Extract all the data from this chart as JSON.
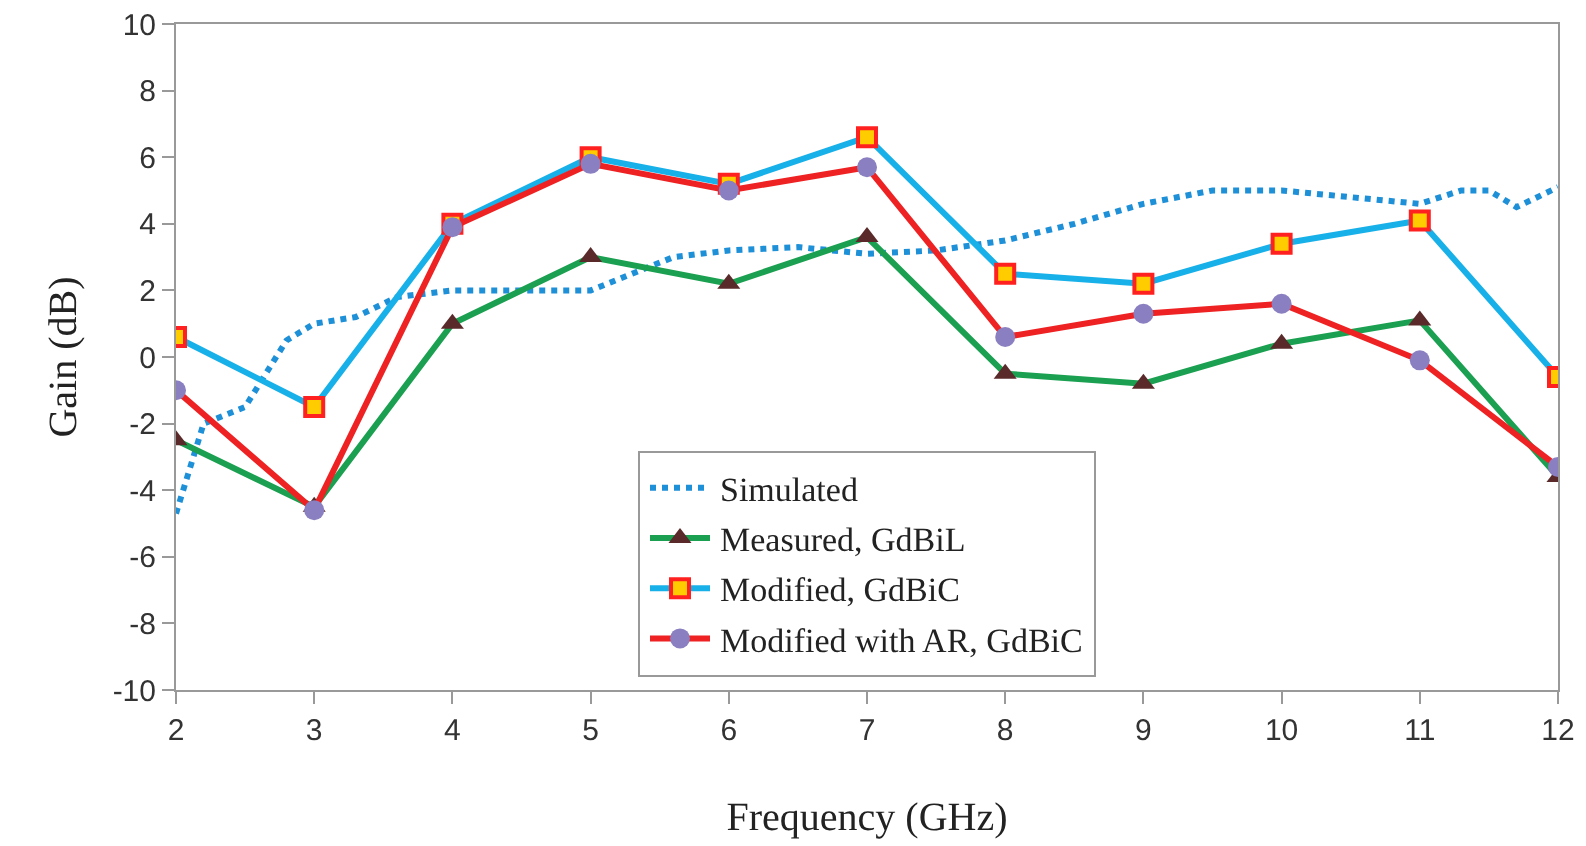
{
  "chart_data": {
    "type": "line",
    "xlabel": "Frequency (GHz)",
    "ylabel": "Gain (dB)",
    "xlim": [
      2,
      12
    ],
    "xticks": [
      2,
      3,
      4,
      5,
      6,
      7,
      8,
      9,
      10,
      11,
      12
    ],
    "ylim": [
      -10,
      10
    ],
    "yticks": [
      -10,
      -8,
      -6,
      -4,
      -2,
      0,
      2,
      4,
      6,
      8,
      10
    ],
    "grid": false,
    "legend": "bottom",
    "series": [
      {
        "name": "Simulated",
        "color": "#1e90d8",
        "line_style": "dotted",
        "marker": "none",
        "x": [
          2,
          2.2,
          2.5,
          2.8,
          3,
          3.3,
          3.6,
          4,
          4.5,
          5,
          5.3,
          5.6,
          6,
          6.5,
          7,
          7.5,
          8,
          8.5,
          9,
          9.5,
          10,
          10.5,
          11,
          11.3,
          11.5,
          11.7,
          12
        ],
        "values": [
          -4.7,
          -2,
          -1.5,
          0.5,
          1,
          1.2,
          1.8,
          2,
          2,
          2,
          2.5,
          3,
          3.2,
          3.3,
          3.1,
          3.2,
          3.5,
          4,
          4.6,
          5,
          5,
          4.8,
          4.6,
          5,
          5,
          4.5,
          5.1
        ]
      },
      {
        "name": "Measured, GdBiL",
        "color": "#1aa050",
        "line_style": "solid",
        "marker": "triangle",
        "x": [
          2,
          3,
          4,
          5,
          6,
          7,
          8,
          9,
          10,
          11,
          12
        ],
        "values": [
          -2.5,
          -4.5,
          1,
          3,
          2.2,
          3.6,
          -0.5,
          -0.8,
          0.4,
          1.1,
          -3.6
        ]
      },
      {
        "name": "Modified, GdBiC",
        "color": "#18b0e8",
        "line_style": "solid",
        "marker": "square",
        "x": [
          2,
          3,
          4,
          5,
          6,
          7,
          8,
          9,
          10,
          11,
          12
        ],
        "values": [
          0.6,
          -1.5,
          4,
          6,
          5.2,
          6.6,
          2.5,
          2.2,
          3.4,
          4.1,
          -0.6
        ]
      },
      {
        "name": "Modified with AR, GdBiC",
        "color": "#ee2222",
        "line_style": "solid",
        "marker": "circle",
        "x": [
          2,
          3,
          4,
          5,
          6,
          7,
          8,
          9,
          10,
          11,
          12
        ],
        "values": [
          -1,
          -4.6,
          3.9,
          5.8,
          5,
          5.7,
          0.6,
          1.3,
          1.6,
          -0.1,
          -3.3
        ]
      }
    ]
  }
}
